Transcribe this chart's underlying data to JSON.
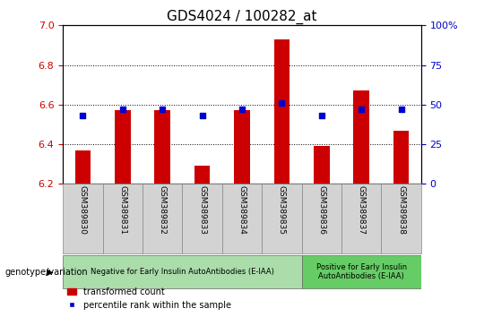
{
  "title": "GDS4024 / 100282_at",
  "samples": [
    "GSM389830",
    "GSM389831",
    "GSM389832",
    "GSM389833",
    "GSM389834",
    "GSM389835",
    "GSM389836",
    "GSM389837",
    "GSM389838"
  ],
  "transformed_count": [
    6.37,
    6.57,
    6.57,
    6.29,
    6.57,
    6.93,
    6.39,
    6.67,
    6.47
  ],
  "percentile_rank": [
    43,
    47,
    47,
    43,
    47,
    51,
    43,
    47,
    47
  ],
  "ylim_left": [
    6.2,
    7.0
  ],
  "ylim_right": [
    0,
    100
  ],
  "yticks_left": [
    6.2,
    6.4,
    6.6,
    6.8,
    7.0
  ],
  "yticks_right": [
    0,
    25,
    50,
    75,
    100
  ],
  "bar_color": "#cc0000",
  "dot_color": "#0000cc",
  "bar_width": 0.4,
  "group1_label": "Negative for Early Insulin AutoAntibodies (E-IAA)",
  "group2_label": "Positive for Early Insulin\nAutoAntibodies (E-IAA)",
  "group1_color": "#aaddaa",
  "group2_color": "#66cc66",
  "genotype_label": "genotype/variation",
  "legend_bar_label": "transformed count",
  "legend_dot_label": "percentile rank within the sample",
  "tick_color_left": "#cc0000",
  "tick_color_right": "#0000cc",
  "xtick_bg_color": "#d3d3d3",
  "xtick_border_color": "#888888"
}
